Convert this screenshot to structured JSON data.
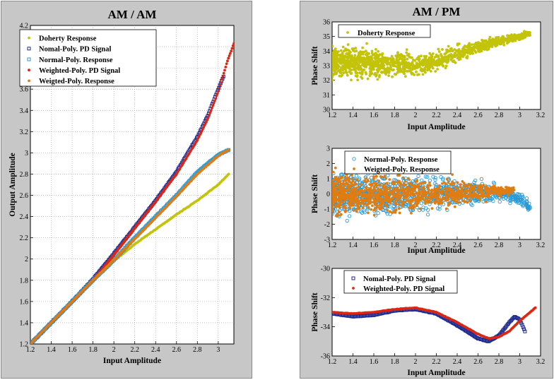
{
  "colors": {
    "panel_bg": "#c7c7c7",
    "plot_bg": "#ffffff",
    "doherty": "#c3c40a",
    "normal_pd": "#1d2a8f",
    "normal_resp": "#2a9ad6",
    "weighted_pd": "#dd2613",
    "weighted_resp": "#e07d12"
  },
  "chart_data": [
    {
      "id": "am-am",
      "type": "scatter",
      "title": "AM / AM",
      "xlabel": "Input Amplitude",
      "ylabel": "Output Amplitude",
      "xlim": [
        1.2,
        3.15
      ],
      "ylim": [
        1.2,
        4.2
      ],
      "xticks": [
        1.2,
        1.4,
        1.6,
        1.8,
        2,
        2.2,
        2.4,
        2.6,
        2.8,
        3
      ],
      "yticks": [
        1.2,
        1.4,
        1.6,
        1.8,
        2,
        2.2,
        2.4,
        2.6,
        2.8,
        3,
        3.2,
        3.4,
        3.6,
        3.8,
        4,
        4.2
      ],
      "xtick_labels": [
        "1.2",
        "1.4",
        "1.6",
        "1.8",
        "2",
        "2.2",
        "2.4",
        "2.6",
        "2.8",
        "3"
      ],
      "ytick_labels": [
        "1.2",
        "1.4",
        "1.6",
        "1.8",
        "2",
        "2.2",
        "2.4",
        "2.6",
        "2.8",
        "3",
        "3.2",
        "3.4",
        "3.6",
        "3.8",
        "4",
        "4.2"
      ],
      "grid": true,
      "legend_position": "top-left",
      "series": [
        {
          "name": "Doherty Response",
          "marker": "dot",
          "color": "#c3c40a",
          "points": [
            [
              1.2,
              1.2
            ],
            [
              1.4,
              1.4
            ],
            [
              1.6,
              1.6
            ],
            [
              1.8,
              1.79
            ],
            [
              2.0,
              1.98
            ],
            [
              2.2,
              2.14
            ],
            [
              2.4,
              2.28
            ],
            [
              2.6,
              2.42
            ],
            [
              2.8,
              2.55
            ],
            [
              3.0,
              2.7
            ],
            [
              3.1,
              2.8
            ]
          ]
        },
        {
          "name": "Nomal-Poly. PD Signal",
          "marker": "square",
          "color": "#1d2a8f",
          "points": [
            [
              1.2,
              1.2
            ],
            [
              1.4,
              1.4
            ],
            [
              1.6,
              1.6
            ],
            [
              1.8,
              1.81
            ],
            [
              2.0,
              2.05
            ],
            [
              2.2,
              2.3
            ],
            [
              2.4,
              2.55
            ],
            [
              2.6,
              2.82
            ],
            [
              2.8,
              3.15
            ],
            [
              2.9,
              3.35
            ],
            [
              3.0,
              3.6
            ],
            [
              3.05,
              3.72
            ]
          ]
        },
        {
          "name": "Normal-Poly. Response",
          "marker": "square",
          "color": "#2a9ad6",
          "points": [
            [
              1.2,
              1.2
            ],
            [
              1.4,
              1.4
            ],
            [
              1.6,
              1.6
            ],
            [
              1.8,
              1.8
            ],
            [
              2.0,
              1.99
            ],
            [
              2.2,
              2.2
            ],
            [
              2.4,
              2.4
            ],
            [
              2.6,
              2.6
            ],
            [
              2.8,
              2.82
            ],
            [
              3.0,
              2.98
            ],
            [
              3.1,
              3.03
            ]
          ]
        },
        {
          "name": "Weighted-Poly. PD Signal",
          "marker": "dot",
          "color": "#dd2613",
          "points": [
            [
              1.2,
              1.2
            ],
            [
              1.4,
              1.4
            ],
            [
              1.6,
              1.6
            ],
            [
              1.8,
              1.8
            ],
            [
              2.0,
              2.04
            ],
            [
              2.2,
              2.29
            ],
            [
              2.4,
              2.54
            ],
            [
              2.6,
              2.8
            ],
            [
              2.8,
              3.12
            ],
            [
              2.9,
              3.32
            ],
            [
              3.0,
              3.58
            ],
            [
              3.1,
              3.9
            ],
            [
              3.15,
              4.03
            ]
          ]
        },
        {
          "name": "Weigted-Poly. Response",
          "marker": "dot",
          "color": "#e07d12",
          "points": [
            [
              1.2,
              1.2
            ],
            [
              1.4,
              1.4
            ],
            [
              1.6,
              1.6
            ],
            [
              1.8,
              1.8
            ],
            [
              2.0,
              1.99
            ],
            [
              2.2,
              2.19
            ],
            [
              2.4,
              2.39
            ],
            [
              2.6,
              2.59
            ],
            [
              2.8,
              2.8
            ],
            [
              3.0,
              2.97
            ],
            [
              3.1,
              3.03
            ]
          ]
        }
      ]
    },
    {
      "id": "am-pm-doherty",
      "type": "scatter",
      "title": "AM / PM",
      "xlabel": "Input Amplitude",
      "ylabel": "Phase Shift",
      "xlim": [
        1.2,
        3.2
      ],
      "ylim": [
        30,
        36
      ],
      "xticks": [
        1.2,
        1.4,
        1.6,
        1.8,
        2,
        2.2,
        2.4,
        2.6,
        2.8,
        3,
        3.2
      ],
      "yticks": [
        30,
        31,
        32,
        33,
        34,
        35,
        36
      ],
      "xtick_labels": [
        "1.2",
        "1.4",
        "1.6",
        "1.8",
        "2",
        "2.2",
        "2.4",
        "2.6",
        "2.8",
        "3",
        "3.2"
      ],
      "ytick_labels": [
        "30",
        "31",
        "32",
        "33",
        "34",
        "35",
        "36"
      ],
      "grid": false,
      "legend_position": "top-left",
      "series": [
        {
          "name": "Doherty Response",
          "marker": "dot",
          "color": "#c3c40a",
          "center": [
            [
              1.2,
              33.2
            ],
            [
              1.4,
              33.25
            ],
            [
              1.6,
              33.2
            ],
            [
              1.8,
              33.1
            ],
            [
              2.0,
              33.05
            ],
            [
              2.2,
              33.3
            ],
            [
              2.4,
              33.8
            ],
            [
              2.6,
              34.3
            ],
            [
              2.8,
              34.7
            ],
            [
              3.0,
              35.0
            ],
            [
              3.1,
              35.2
            ]
          ],
          "spread": [
            [
              1.2,
              2.3
            ],
            [
              1.6,
              2.0
            ],
            [
              2.0,
              1.6
            ],
            [
              2.4,
              1.1
            ],
            [
              2.8,
              0.7
            ],
            [
              3.1,
              0.5
            ]
          ]
        }
      ]
    },
    {
      "id": "am-pm-response",
      "type": "scatter",
      "title": "",
      "xlabel": "Input Amplitude",
      "ylabel": "Phase Shift",
      "xlim": [
        1.2,
        3.2
      ],
      "ylim": [
        -3,
        3
      ],
      "xticks": [
        1.2,
        1.4,
        1.6,
        1.8,
        2,
        2.2,
        2.4,
        2.6,
        2.8,
        3,
        3.2
      ],
      "yticks": [
        -3,
        -2,
        -1,
        0,
        1,
        2,
        3
      ],
      "xtick_labels": [
        "1.2",
        "1.4",
        "1.6",
        "1.8",
        "2",
        "2.2",
        "2.4",
        "2.6",
        "2.8",
        "3",
        "3.2"
      ],
      "ytick_labels": [
        "-3",
        "-2",
        "-1",
        "0",
        "1",
        "2",
        "3"
      ],
      "grid": false,
      "legend_position": "top-left",
      "series": [
        {
          "name": "Normal-Poly. Response",
          "marker": "circle",
          "color": "#2a9ad6",
          "center": [
            [
              1.2,
              0.0
            ],
            [
              1.6,
              0.0
            ],
            [
              2.0,
              0.0
            ],
            [
              2.4,
              0.05
            ],
            [
              2.8,
              0.1
            ],
            [
              3.0,
              -0.3
            ],
            [
              3.1,
              -0.9
            ]
          ],
          "spread": [
            [
              1.2,
              3.0
            ],
            [
              1.8,
              2.8
            ],
            [
              2.4,
              2.0
            ],
            [
              2.8,
              1.2
            ],
            [
              3.1,
              0.8
            ]
          ]
        },
        {
          "name": "Weigted-Poly. Response",
          "marker": "dot",
          "color": "#e07d12",
          "center": [
            [
              1.2,
              0.0
            ],
            [
              1.6,
              0.0
            ],
            [
              2.0,
              0.0
            ],
            [
              2.4,
              0.05
            ],
            [
              2.8,
              0.15
            ],
            [
              2.95,
              0.2
            ]
          ],
          "spread": [
            [
              1.2,
              2.7
            ],
            [
              1.8,
              2.5
            ],
            [
              2.4,
              1.8
            ],
            [
              2.8,
              1.0
            ],
            [
              2.95,
              0.6
            ]
          ]
        }
      ]
    },
    {
      "id": "am-pm-pd",
      "type": "scatter",
      "title": "",
      "xlabel": "Input Amplitude",
      "ylabel": "Phase Shift",
      "xlim": [
        1.2,
        3.2
      ],
      "ylim": [
        -36,
        -30
      ],
      "xticks": [
        1.2,
        1.4,
        1.6,
        1.8,
        2,
        2.2,
        2.4,
        2.6,
        2.8,
        3,
        3.2
      ],
      "yticks": [
        -36,
        -34,
        -32,
        -30
      ],
      "xtick_labels": [
        "1.2",
        "1.4",
        "1.6",
        "1.8",
        "2",
        "2.2",
        "2.4",
        "2.6",
        "2.8",
        "3",
        "3.2"
      ],
      "ytick_labels": [
        "-36",
        "-34",
        "-32",
        "-30"
      ],
      "grid": false,
      "legend_position": "top-left",
      "series": [
        {
          "name": "Nomal-Poly. PD Signal",
          "marker": "square",
          "color": "#1d2a8f",
          "points": [
            [
              1.2,
              -33.1
            ],
            [
              1.4,
              -33.3
            ],
            [
              1.6,
              -33.2
            ],
            [
              1.8,
              -32.9
            ],
            [
              2.0,
              -32.8
            ],
            [
              2.2,
              -33.1
            ],
            [
              2.4,
              -33.9
            ],
            [
              2.6,
              -34.8
            ],
            [
              2.7,
              -35.0
            ],
            [
              2.8,
              -34.6
            ],
            [
              2.9,
              -33.7
            ],
            [
              2.95,
              -33.3
            ],
            [
              3.0,
              -33.5
            ],
            [
              3.05,
              -34.3
            ]
          ]
        },
        {
          "name": "Weighted-Poly. PD Signal",
          "marker": "dot",
          "color": "#dd2613",
          "points": [
            [
              1.2,
              -33.0
            ],
            [
              1.4,
              -33.1
            ],
            [
              1.6,
              -33.0
            ],
            [
              1.8,
              -32.8
            ],
            [
              2.0,
              -32.7
            ],
            [
              2.2,
              -33.0
            ],
            [
              2.4,
              -33.7
            ],
            [
              2.6,
              -34.5
            ],
            [
              2.7,
              -34.8
            ],
            [
              2.8,
              -34.7
            ],
            [
              2.9,
              -34.3
            ],
            [
              3.0,
              -33.6
            ],
            [
              3.1,
              -33.0
            ],
            [
              3.15,
              -32.7
            ]
          ]
        }
      ]
    }
  ]
}
